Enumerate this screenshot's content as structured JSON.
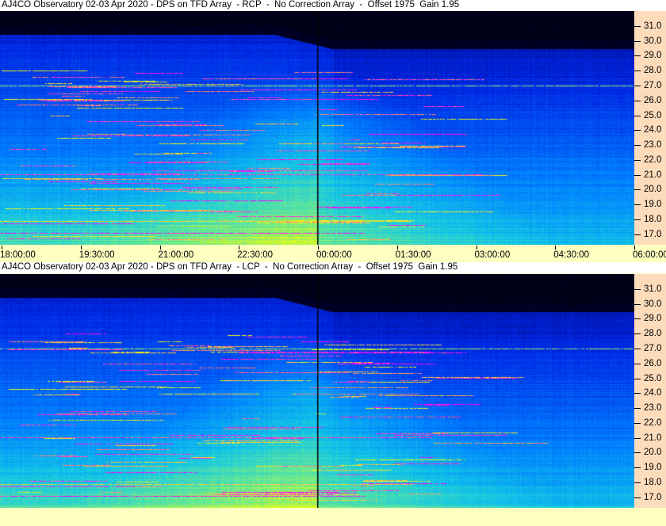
{
  "panels": [
    {
      "title": "AJ4CO Observatory 02-03 Apr 2020 - DPS on TFD Array  - RCP  -  No Correction Array  -  Offset 1975  Gain 1.95",
      "polarization": "RCP"
    },
    {
      "title": "AJ4CO Observatory 02-03 Apr 2020 - DPS on TFD Array  - LCP  -  No Correction Array  -  Offset 1975  Gain 1.95",
      "polarization": "LCP"
    }
  ],
  "freq_ticks": [
    "31.0",
    "30.0",
    "29.0",
    "28.0",
    "27.0",
    "26.0",
    "25.0",
    "24.0",
    "23.0",
    "22.0",
    "21.0",
    "20.0",
    "19.0",
    "18.0",
    "17.0"
  ],
  "time_ticks": [
    "18:00:00",
    "19:30:00",
    "21:00:00",
    "22:30:00",
    "00:00:00",
    "01:30:00",
    "03:00:00",
    "04:30:00",
    "06:00:00"
  ],
  "colors": {
    "title_bg": "#ffffff",
    "freq_axis_bg": "#fddcbc",
    "time_axis_bg": "#ffffc0",
    "marker_line": "#000000"
  },
  "chart_data": {
    "type": "heatmap",
    "title": "AJ4CO Observatory 02-03 Apr 2020 - DPS on TFD Array",
    "x_ticks": [
      "18:00:00",
      "19:30:00",
      "21:00:00",
      "22:30:00",
      "00:00:00",
      "01:30:00",
      "03:00:00",
      "04:30:00",
      "06:00:00"
    ],
    "y_ticks": [
      31.0,
      30.0,
      29.0,
      28.0,
      27.0,
      26.0,
      25.0,
      24.0,
      23.0,
      22.0,
      21.0,
      20.0,
      19.0,
      18.0,
      17.0
    ],
    "ylim": [
      16.3,
      32.0
    ],
    "xlim": [
      "18:00:00",
      "06:00:00"
    ],
    "colormap": [
      "#000000",
      "#000080",
      "#0040ff",
      "#00a0ff",
      "#40dcc8",
      "#ffff00",
      "#ff00ff"
    ],
    "marker_time": "00:00:00"
  }
}
